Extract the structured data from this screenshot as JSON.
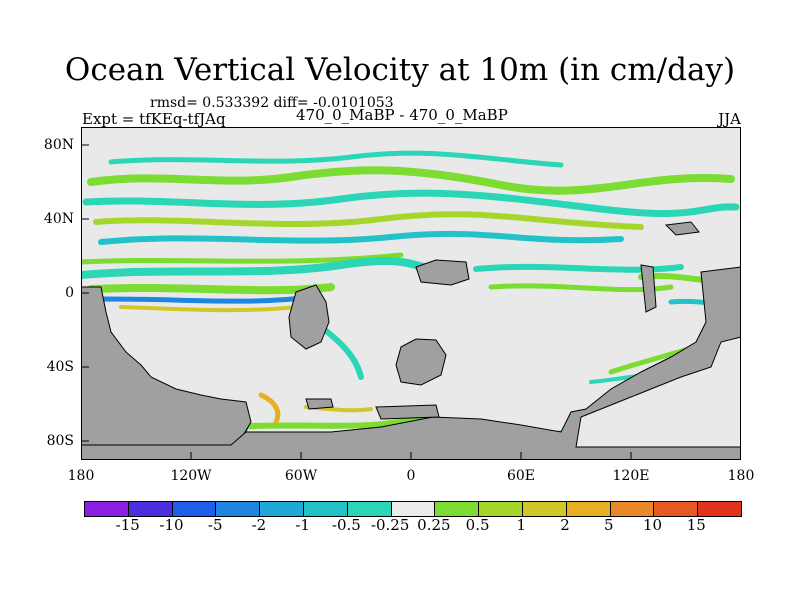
{
  "title": "Ocean Vertical Velocity at 10m (in cm/day)",
  "stats": "rmsd= 0.533392 diff= -0.0101053",
  "left_string": "Expt = tfKEq-tfJAq",
  "center_string": "470_0_MaBP - 470_0_MaBP",
  "right_string": "JJA",
  "lat_labels": [
    "80N",
    "40N",
    "0",
    "40S",
    "80S"
  ],
  "lon_labels": [
    "180",
    "120W",
    "60W",
    "0",
    "60E",
    "120E",
    "180"
  ],
  "colorbar": {
    "labels": [
      "-15",
      "-10",
      "-5",
      "-2",
      "-1",
      "-0.5",
      "-0.25",
      "0.25",
      "0.5",
      "1",
      "2",
      "5",
      "10",
      "15"
    ],
    "colors": [
      "#8c20e0",
      "#4a2ee0",
      "#1f5ee8",
      "#1f86e0",
      "#1fa8d8",
      "#23c2c8",
      "#2ad6b6",
      "#ececec",
      "#7cdc32",
      "#a6d62c",
      "#d0c828",
      "#e6b022",
      "#e8882a",
      "#e65a22",
      "#e0341c"
    ]
  },
  "legend_colors": {
    "land": "#a0a0a0",
    "ocean_background": "#e9e9e9"
  }
}
